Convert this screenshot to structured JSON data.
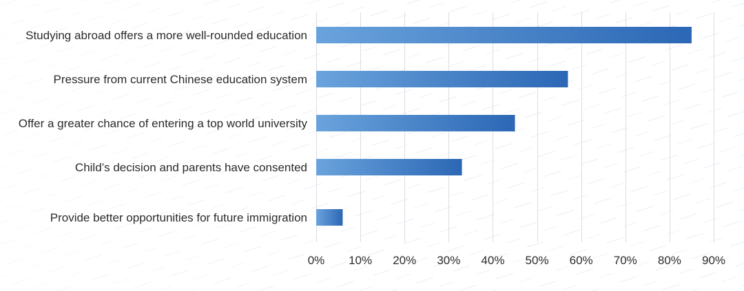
{
  "chart_data": {
    "type": "bar",
    "orientation": "horizontal",
    "title": "",
    "xlabel": "",
    "ylabel": "",
    "categories": [
      "Studying abroad offers a more well-rounded education",
      "Pressure from current Chinese education system",
      "Offer a greater chance of entering a top world university",
      "Child’s decision and parents have consented",
      "Provide better opportunities for future immigration"
    ],
    "values": [
      85,
      57,
      45,
      33,
      6
    ],
    "xlim": [
      0,
      90
    ],
    "ticks": [
      0,
      10,
      20,
      30,
      40,
      50,
      60,
      70,
      80,
      90
    ],
    "tick_labels": [
      "0%",
      "10%",
      "20%",
      "30%",
      "40%",
      "50%",
      "60%",
      "70%",
      "80%",
      "90%"
    ],
    "unit": "%",
    "grid": true,
    "legend": "none",
    "colors": {
      "bar_start": "#6aa3dc",
      "bar_end": "#2b67b5",
      "grid": "#d9dde3",
      "text": "#2b2b2b"
    }
  }
}
